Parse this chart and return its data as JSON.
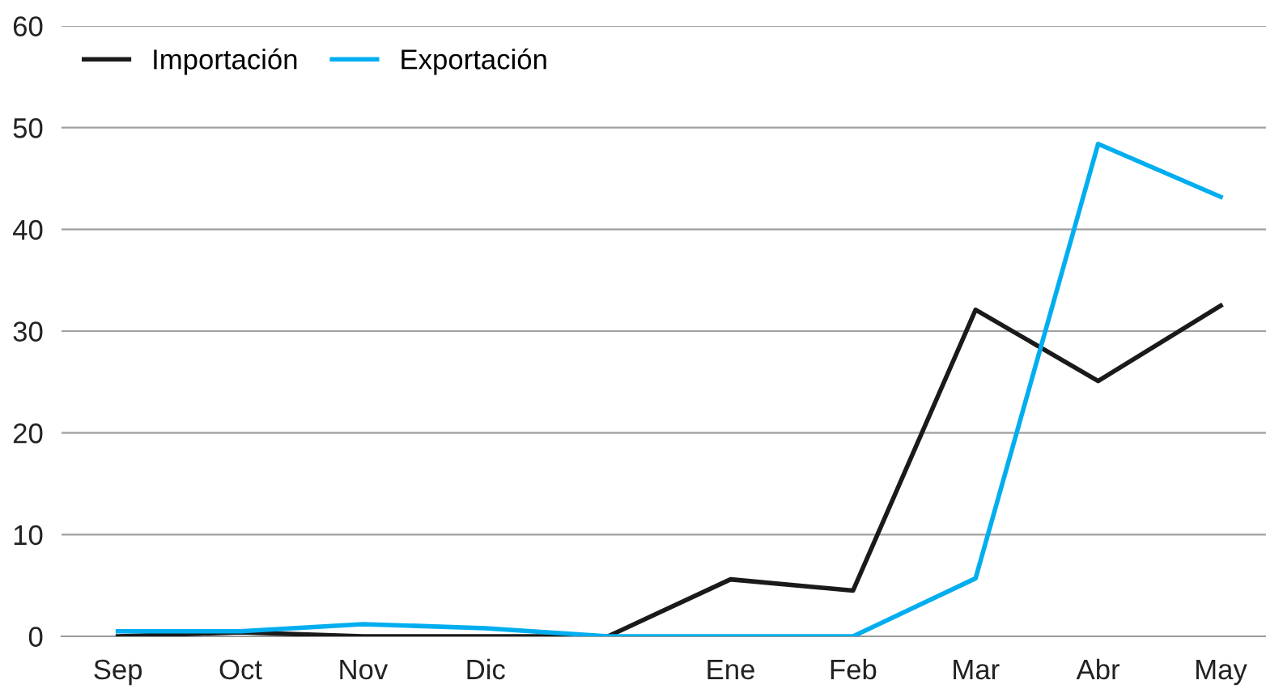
{
  "chart_data": {
    "type": "line",
    "categories": [
      "Sep",
      "Oct",
      "Nov",
      "Dic",
      null,
      "Ene",
      "Feb",
      "Mar",
      "Abr",
      "May"
    ],
    "series": [
      {
        "name": "Importación",
        "color": "#1a1a1a",
        "values": [
          0,
          0.4,
          0,
          0,
          0,
          5.6,
          4.5,
          32.1,
          25.1,
          32.5
        ]
      },
      {
        "name": "Exportación",
        "color": "#00aeef",
        "values": [
          0.5,
          0.5,
          1.2,
          0.8,
          0,
          0,
          0,
          5.7,
          48.4,
          43.2
        ]
      }
    ],
    "ylim": [
      0,
      60
    ],
    "yticks": [
      0,
      10,
      20,
      30,
      40,
      50,
      60
    ],
    "grid": "y",
    "legend": "top left",
    "marker": "none",
    "line_style": "solid"
  }
}
